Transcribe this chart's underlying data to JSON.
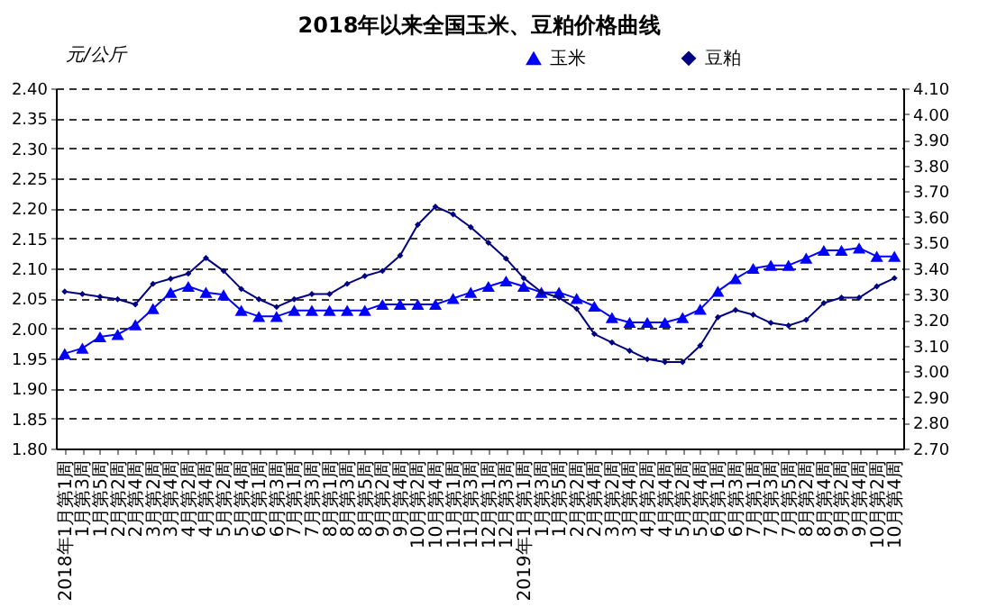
{
  "chart_data": {
    "type": "line",
    "title": "2018年以来全国玉米、豆粕价格曲线",
    "ylabel": "元/公斤",
    "categories": [
      "2018年1月第1周",
      "1月第3周",
      "1月第5周",
      "2月第2周",
      "2月第4周",
      "3月第2周",
      "3月第4周",
      "4月第2周",
      "4月第4周",
      "5月第2周",
      "5月第4周",
      "6月第1周",
      "6月第3周",
      "7月第1周",
      "7月第3周",
      "8月第1周",
      "8月第3周",
      "8月第5周",
      "9月第2周",
      "9月第4周",
      "10月第2周",
      "10月第4周",
      "11月第1周",
      "11月第3周",
      "12月第1周",
      "12月第3周",
      "2019年1月第1周",
      "1月第3周",
      "1月第5周",
      "2月第2周",
      "2月第4周",
      "3月第2周",
      "3月第4周",
      "4月第2周",
      "4月第4周",
      "5月第2周",
      "5月第4周",
      "6月第1周",
      "6月第3周",
      "7月第1周",
      "7月第3周",
      "7月第5周",
      "8月第2周",
      "8月第4周",
      "9月第2周",
      "9月第4周",
      "10月第2周",
      "10月第4周"
    ],
    "series": [
      {
        "name": "玉米",
        "color": "#0000ff",
        "marker": "triangle",
        "values": [
          1.958,
          1.967,
          1.986,
          1.99,
          2.006,
          2.033,
          2.06,
          2.07,
          2.06,
          2.056,
          2.03,
          2.02,
          2.02,
          2.03,
          2.03,
          2.03,
          2.03,
          2.03,
          2.04,
          2.04,
          2.04,
          2.04,
          2.05,
          2.06,
          2.07,
          2.079,
          2.07,
          2.06,
          2.06,
          2.05,
          2.037,
          2.018,
          2.01,
          2.01,
          2.01,
          2.018,
          2.032,
          2.062,
          2.083,
          2.1,
          2.105,
          2.105,
          2.117,
          2.13,
          2.13,
          2.134,
          2.12,
          2.12
        ]
      },
      {
        "name": "豆粕",
        "color": "#000080",
        "marker": "diamond",
        "axis": "y2",
        "values": [
          3.31,
          3.3,
          3.29,
          3.28,
          3.26,
          3.34,
          3.36,
          3.38,
          3.44,
          3.39,
          3.32,
          3.28,
          3.25,
          3.28,
          3.3,
          3.3,
          3.34,
          3.37,
          3.39,
          3.45,
          3.57,
          3.64,
          3.61,
          3.56,
          3.5,
          3.438,
          3.362,
          3.308,
          3.286,
          3.243,
          3.145,
          3.112,
          3.08,
          3.047,
          3.036,
          3.036,
          3.1,
          3.21,
          3.238,
          3.22,
          3.188,
          3.178,
          3.2,
          3.265,
          3.286,
          3.286,
          3.33,
          3.362
        ]
      }
    ],
    "ylim": [
      1.8,
      2.4
    ],
    "yticks": [
      {
        "value": 1.8,
        "label": "1.80"
      },
      {
        "value": 1.85,
        "label": "1.85"
      },
      {
        "value": 1.9,
        "label": "1.90"
      },
      {
        "value": 1.95,
        "label": "1.95"
      },
      {
        "value": 2.0,
        "label": "2.00"
      },
      {
        "value": 2.05,
        "label": "2.05"
      },
      {
        "value": 2.1,
        "label": "2.10"
      },
      {
        "value": 2.15,
        "label": "2.15"
      },
      {
        "value": 2.2,
        "label": "2.20"
      },
      {
        "value": 2.25,
        "label": "2.25"
      },
      {
        "value": 2.3,
        "label": "2.30"
      },
      {
        "value": 2.35,
        "label": "2.35"
      },
      {
        "value": 2.4,
        "label": "2.40"
      }
    ],
    "y2lim": [
      2.7,
      4.1
    ],
    "y2ticks": [
      {
        "value": 2.7,
        "label": "2.70"
      },
      {
        "value": 2.8,
        "label": "2.80"
      },
      {
        "value": 2.9,
        "label": "2.90"
      },
      {
        "value": 3.0,
        "label": "3.00"
      },
      {
        "value": 3.1,
        "label": "3.10"
      },
      {
        "value": 3.2,
        "label": "3.20"
      },
      {
        "value": 3.3,
        "label": "3.30"
      },
      {
        "value": 3.4,
        "label": "3.40"
      },
      {
        "value": 3.5,
        "label": "3.50"
      },
      {
        "value": 3.6,
        "label": "3.60"
      },
      {
        "value": 3.7,
        "label": "3.70"
      },
      {
        "value": 3.8,
        "label": "3.80"
      },
      {
        "value": 3.9,
        "label": "3.90"
      },
      {
        "value": 4.0,
        "label": "4.00"
      },
      {
        "value": 4.1,
        "label": "4.10"
      }
    ],
    "grid": "y",
    "legend": "top right",
    "line_style": "solid"
  }
}
